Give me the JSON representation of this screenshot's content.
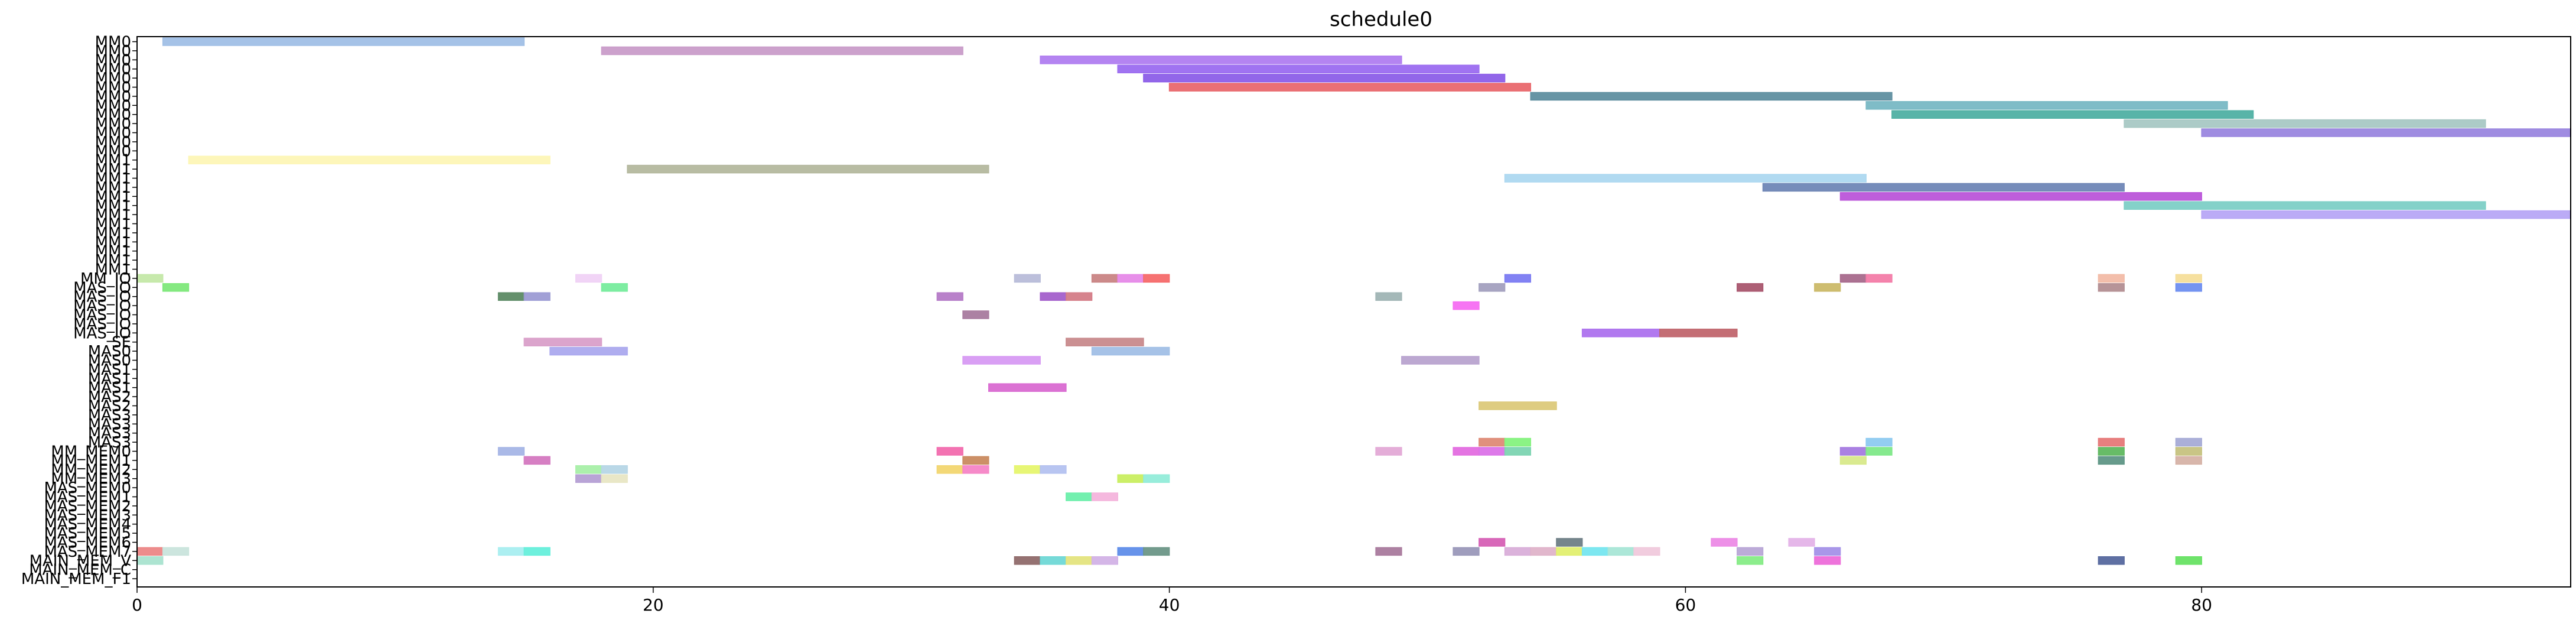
{
  "chart_data": {
    "type": "gantt",
    "title": "schedule0",
    "xlabel": "",
    "ylabel": "",
    "xlim": [
      0,
      94.3
    ],
    "xticks": [
      0,
      20,
      40,
      60,
      80
    ],
    "xtick_labels": [
      "0",
      "20",
      "40",
      "60",
      "80"
    ],
    "rows": [
      "MM0",
      "MM0",
      "MM0",
      "MM0",
      "MM0",
      "MM0",
      "MM0",
      "MM0",
      "MM0",
      "MM0",
      "MM0",
      "MM0",
      "MM0",
      "MM1",
      "MM1",
      "MM1",
      "MM1",
      "MM1",
      "MM1",
      "MM1",
      "MM1",
      "MM1",
      "MM1",
      "MM1",
      "MM1",
      "MM1",
      "MM_IO",
      "MAS_IO",
      "MAS_IO",
      "MAS_IO",
      "MAS_IO",
      "MAS_IO",
      "MAS_IO",
      "SE",
      "MAS0",
      "MAS0",
      "MAS1",
      "MAS1",
      "MAS1",
      "MAS2",
      "MAS2",
      "MAS3",
      "MAS3",
      "MAS3",
      "MAS3",
      "MM_MEM0",
      "MM_MEM1",
      "MM_MEM2",
      "MM_MEM3",
      "MAS_MEM0",
      "MAS_MEM1",
      "MAS_MEM2",
      "MAS_MEM3",
      "MAS_MEM4",
      "MAS_MEM5",
      "MAS_MEM6",
      "MAS_MEM7",
      "MAIN_MEM_V",
      "MAIN_MEM_C",
      "MAIN_MEM_F1"
    ],
    "tasks": [
      {
        "row": 0,
        "start": 1,
        "end": 15,
        "color": "#a0bfe6"
      },
      {
        "row": 1,
        "start": 18,
        "end": 32,
        "color": "#c99cc9"
      },
      {
        "row": 2,
        "start": 35,
        "end": 49,
        "color": "#b07df0"
      },
      {
        "row": 3,
        "start": 38,
        "end": 52,
        "color": "#9b6cf0"
      },
      {
        "row": 4,
        "start": 39,
        "end": 53,
        "color": "#8c5ee8"
      },
      {
        "row": 5,
        "start": 40,
        "end": 54,
        "color": "#e9686d"
      },
      {
        "row": 6,
        "start": 54,
        "end": 68,
        "color": "#5f8fa0"
      },
      {
        "row": 7,
        "start": 67,
        "end": 81,
        "color": "#78b8c4"
      },
      {
        "row": 8,
        "start": 68,
        "end": 82,
        "color": "#4fb0a3"
      },
      {
        "row": 9,
        "start": 77,
        "end": 91,
        "color": "#a8c8c4"
      },
      {
        "row": 10,
        "start": 80,
        "end": 94.3,
        "color": "#9a86df"
      },
      {
        "row": 13,
        "start": 2,
        "end": 16,
        "color": "#fdf6b6"
      },
      {
        "row": 14,
        "start": 19,
        "end": 33,
        "color": "#b4b89e"
      },
      {
        "row": 15,
        "start": 53,
        "end": 67,
        "color": "#add8f0"
      },
      {
        "row": 16,
        "start": 63,
        "end": 77,
        "color": "#6f86b6"
      },
      {
        "row": 17,
        "start": 66,
        "end": 80,
        "color": "#bb55d9"
      },
      {
        "row": 18,
        "start": 77,
        "end": 91,
        "color": "#7dcfc6"
      },
      {
        "row": 19,
        "start": 80,
        "end": 94.3,
        "color": "#b7a6f5"
      },
      {
        "row": 26,
        "start": 0,
        "end": 1,
        "color": "#c4e8a8"
      },
      {
        "row": 26,
        "start": 17,
        "end": 18,
        "color": "#f0d2f5"
      },
      {
        "row": 26,
        "start": 34,
        "end": 35,
        "color": "#b8bcd9"
      },
      {
        "row": 26,
        "start": 37,
        "end": 38,
        "color": "#c98484"
      },
      {
        "row": 26,
        "start": 38,
        "end": 39,
        "color": "#e689e8"
      },
      {
        "row": 26,
        "start": 39,
        "end": 40,
        "color": "#f56a6a"
      },
      {
        "row": 26,
        "start": 53,
        "end": 54,
        "color": "#7b7bf2"
      },
      {
        "row": 26,
        "start": 66,
        "end": 67,
        "color": "#a86a8c"
      },
      {
        "row": 26,
        "start": 67,
        "end": 68,
        "color": "#f37ca8"
      },
      {
        "row": 26,
        "start": 76,
        "end": 77,
        "color": "#f2bba6"
      },
      {
        "row": 26,
        "start": 79,
        "end": 80,
        "color": "#f5de9a"
      },
      {
        "row": 27,
        "start": 1,
        "end": 2,
        "color": "#7ee87a"
      },
      {
        "row": 27,
        "start": 18,
        "end": 19,
        "color": "#77ec9d"
      },
      {
        "row": 27,
        "start": 52,
        "end": 53,
        "color": "#a3a0bf"
      },
      {
        "row": 27,
        "start": 62,
        "end": 63,
        "color": "#a9566e"
      },
      {
        "row": 27,
        "start": 65,
        "end": 66,
        "color": "#cbb968"
      },
      {
        "row": 27,
        "start": 76,
        "end": 77,
        "color": "#b38e92"
      },
      {
        "row": 27,
        "start": 79,
        "end": 80,
        "color": "#6e8ef0"
      },
      {
        "row": 28,
        "start": 14,
        "end": 15,
        "color": "#5c8a64"
      },
      {
        "row": 28,
        "start": 15,
        "end": 16,
        "color": "#9c9bd4"
      },
      {
        "row": 28,
        "start": 31,
        "end": 32,
        "color": "#b57ac7"
      },
      {
        "row": 28,
        "start": 35,
        "end": 36,
        "color": "#a35fcb"
      },
      {
        "row": 28,
        "start": 36,
        "end": 37,
        "color": "#d47c87"
      },
      {
        "row": 28,
        "start": 48,
        "end": 49,
        "color": "#9fb4b4"
      },
      {
        "row": 29,
        "start": 51,
        "end": 52,
        "color": "#f56ef2"
      },
      {
        "row": 30,
        "start": 32,
        "end": 33,
        "color": "#a87a9e"
      },
      {
        "row": 32,
        "start": 56,
        "end": 59,
        "color": "#ad72ee"
      },
      {
        "row": 32,
        "start": 59,
        "end": 62,
        "color": "#c1666e"
      },
      {
        "row": 33,
        "start": 15,
        "end": 18,
        "color": "#d99fc9"
      },
      {
        "row": 33,
        "start": 36,
        "end": 39,
        "color": "#c88a8c"
      },
      {
        "row": 34,
        "start": 16,
        "end": 19,
        "color": "#aba9ee"
      },
      {
        "row": 34,
        "start": 37,
        "end": 40,
        "color": "#a1bfe6"
      },
      {
        "row": 35,
        "start": 32,
        "end": 35,
        "color": "#d79af3"
      },
      {
        "row": 35,
        "start": 49,
        "end": 52,
        "color": "#b8a3cf"
      },
      {
        "row": 38,
        "start": 33,
        "end": 36,
        "color": "#d96ad1"
      },
      {
        "row": 40,
        "start": 52,
        "end": 55,
        "color": "#dcc97a"
      },
      {
        "row": 44,
        "start": 52,
        "end": 53,
        "color": "#de8a76"
      },
      {
        "row": 44,
        "start": 53,
        "end": 54,
        "color": "#85f27e"
      },
      {
        "row": 44,
        "start": 67,
        "end": 68,
        "color": "#8dcaf0"
      },
      {
        "row": 44,
        "start": 76,
        "end": 77,
        "color": "#e67878"
      },
      {
        "row": 44,
        "start": 79,
        "end": 80,
        "color": "#a6abd6"
      },
      {
        "row": 45,
        "start": 14,
        "end": 15,
        "color": "#a5b5e6"
      },
      {
        "row": 45,
        "start": 31,
        "end": 32,
        "color": "#f26cae"
      },
      {
        "row": 45,
        "start": 48,
        "end": 49,
        "color": "#e3a9d6"
      },
      {
        "row": 45,
        "start": 51,
        "end": 52,
        "color": "#e36de0"
      },
      {
        "row": 45,
        "start": 52,
        "end": 53,
        "color": "#db72e8"
      },
      {
        "row": 45,
        "start": 53,
        "end": 54,
        "color": "#7cd4b1"
      },
      {
        "row": 45,
        "start": 66,
        "end": 67,
        "color": "#a57ae0"
      },
      {
        "row": 45,
        "start": 67,
        "end": 68,
        "color": "#7ee888"
      },
      {
        "row": 45,
        "start": 76,
        "end": 77,
        "color": "#5fb85f"
      },
      {
        "row": 45,
        "start": 79,
        "end": 80,
        "color": "#c6c27f"
      },
      {
        "row": 46,
        "start": 15,
        "end": 16,
        "color": "#d478c0"
      },
      {
        "row": 46,
        "start": 32,
        "end": 33,
        "color": "#c98a5f"
      },
      {
        "row": 46,
        "start": 66,
        "end": 67,
        "color": "#d8e98a"
      },
      {
        "row": 46,
        "start": 76,
        "end": 77,
        "color": "#5f9686"
      },
      {
        "row": 46,
        "start": 79,
        "end": 80,
        "color": "#d6b2a6"
      },
      {
        "row": 47,
        "start": 17,
        "end": 18,
        "color": "#a8efa8"
      },
      {
        "row": 47,
        "start": 18,
        "end": 19,
        "color": "#b6d6e6"
      },
      {
        "row": 47,
        "start": 31,
        "end": 32,
        "color": "#f2d670"
      },
      {
        "row": 47,
        "start": 32,
        "end": 33,
        "color": "#f584c6"
      },
      {
        "row": 47,
        "start": 34,
        "end": 35,
        "color": "#e6f56e"
      },
      {
        "row": 47,
        "start": 35,
        "end": 36,
        "color": "#b4c2f0"
      },
      {
        "row": 48,
        "start": 17,
        "end": 18,
        "color": "#b59fd4"
      },
      {
        "row": 48,
        "start": 18,
        "end": 19,
        "color": "#e8e6c4"
      },
      {
        "row": 48,
        "start": 38,
        "end": 39,
        "color": "#c9ee60"
      },
      {
        "row": 48,
        "start": 39,
        "end": 40,
        "color": "#92ecd9"
      },
      {
        "row": 50,
        "start": 36,
        "end": 37,
        "color": "#6cefab"
      },
      {
        "row": 50,
        "start": 37,
        "end": 38,
        "color": "#f4b4dc"
      },
      {
        "row": 55,
        "start": 52,
        "end": 53,
        "color": "#d660b5"
      },
      {
        "row": 55,
        "start": 55,
        "end": 56,
        "color": "#6e7e86"
      },
      {
        "row": 55,
        "start": 61,
        "end": 62,
        "color": "#ec8ae6"
      },
      {
        "row": 55,
        "start": 64,
        "end": 65,
        "color": "#e4b3e8"
      },
      {
        "row": 56,
        "start": 0,
        "end": 1,
        "color": "#ec8686"
      },
      {
        "row": 56,
        "start": 1,
        "end": 2,
        "color": "#c9e4dc"
      },
      {
        "row": 56,
        "start": 14,
        "end": 15,
        "color": "#a8eef0"
      },
      {
        "row": 56,
        "start": 15,
        "end": 16,
        "color": "#66efdb"
      },
      {
        "row": 56,
        "start": 38,
        "end": 39,
        "color": "#5f8de9"
      },
      {
        "row": 56,
        "start": 39,
        "end": 40,
        "color": "#6c9687"
      },
      {
        "row": 56,
        "start": 48,
        "end": 49,
        "color": "#a97a9d"
      },
      {
        "row": 56,
        "start": 51,
        "end": 52,
        "color": "#9a98b9"
      },
      {
        "row": 56,
        "start": 53,
        "end": 54,
        "color": "#d9aed9"
      },
      {
        "row": 56,
        "start": 54,
        "end": 55,
        "color": "#dfb3c9"
      },
      {
        "row": 56,
        "start": 55,
        "end": 56,
        "color": "#e1ef6f"
      },
      {
        "row": 56,
        "start": 56,
        "end": 57,
        "color": "#76e6ef"
      },
      {
        "row": 56,
        "start": 57,
        "end": 58,
        "color": "#a8e6d6"
      },
      {
        "row": 56,
        "start": 58,
        "end": 59,
        "color": "#f0c9dc"
      },
      {
        "row": 56,
        "start": 62,
        "end": 63,
        "color": "#b8a6d6"
      },
      {
        "row": 56,
        "start": 65,
        "end": 66,
        "color": "#a491e8"
      },
      {
        "row": 57,
        "start": 0,
        "end": 1,
        "color": "#a9e3cf"
      },
      {
        "row": 57,
        "start": 34,
        "end": 35,
        "color": "#8f6a6a"
      },
      {
        "row": 57,
        "start": 35,
        "end": 36,
        "color": "#6fd8d6"
      },
      {
        "row": 57,
        "start": 36,
        "end": 37,
        "color": "#e4e47e"
      },
      {
        "row": 57,
        "start": 37,
        "end": 38,
        "color": "#d2b2e6"
      },
      {
        "row": 57,
        "start": 62,
        "end": 63,
        "color": "#86ec86"
      },
      {
        "row": 57,
        "start": 65,
        "end": 66,
        "color": "#ed6cd9"
      },
      {
        "row": 57,
        "start": 76,
        "end": 77,
        "color": "#56689e"
      },
      {
        "row": 57,
        "start": 79,
        "end": 80,
        "color": "#67e263"
      }
    ]
  }
}
